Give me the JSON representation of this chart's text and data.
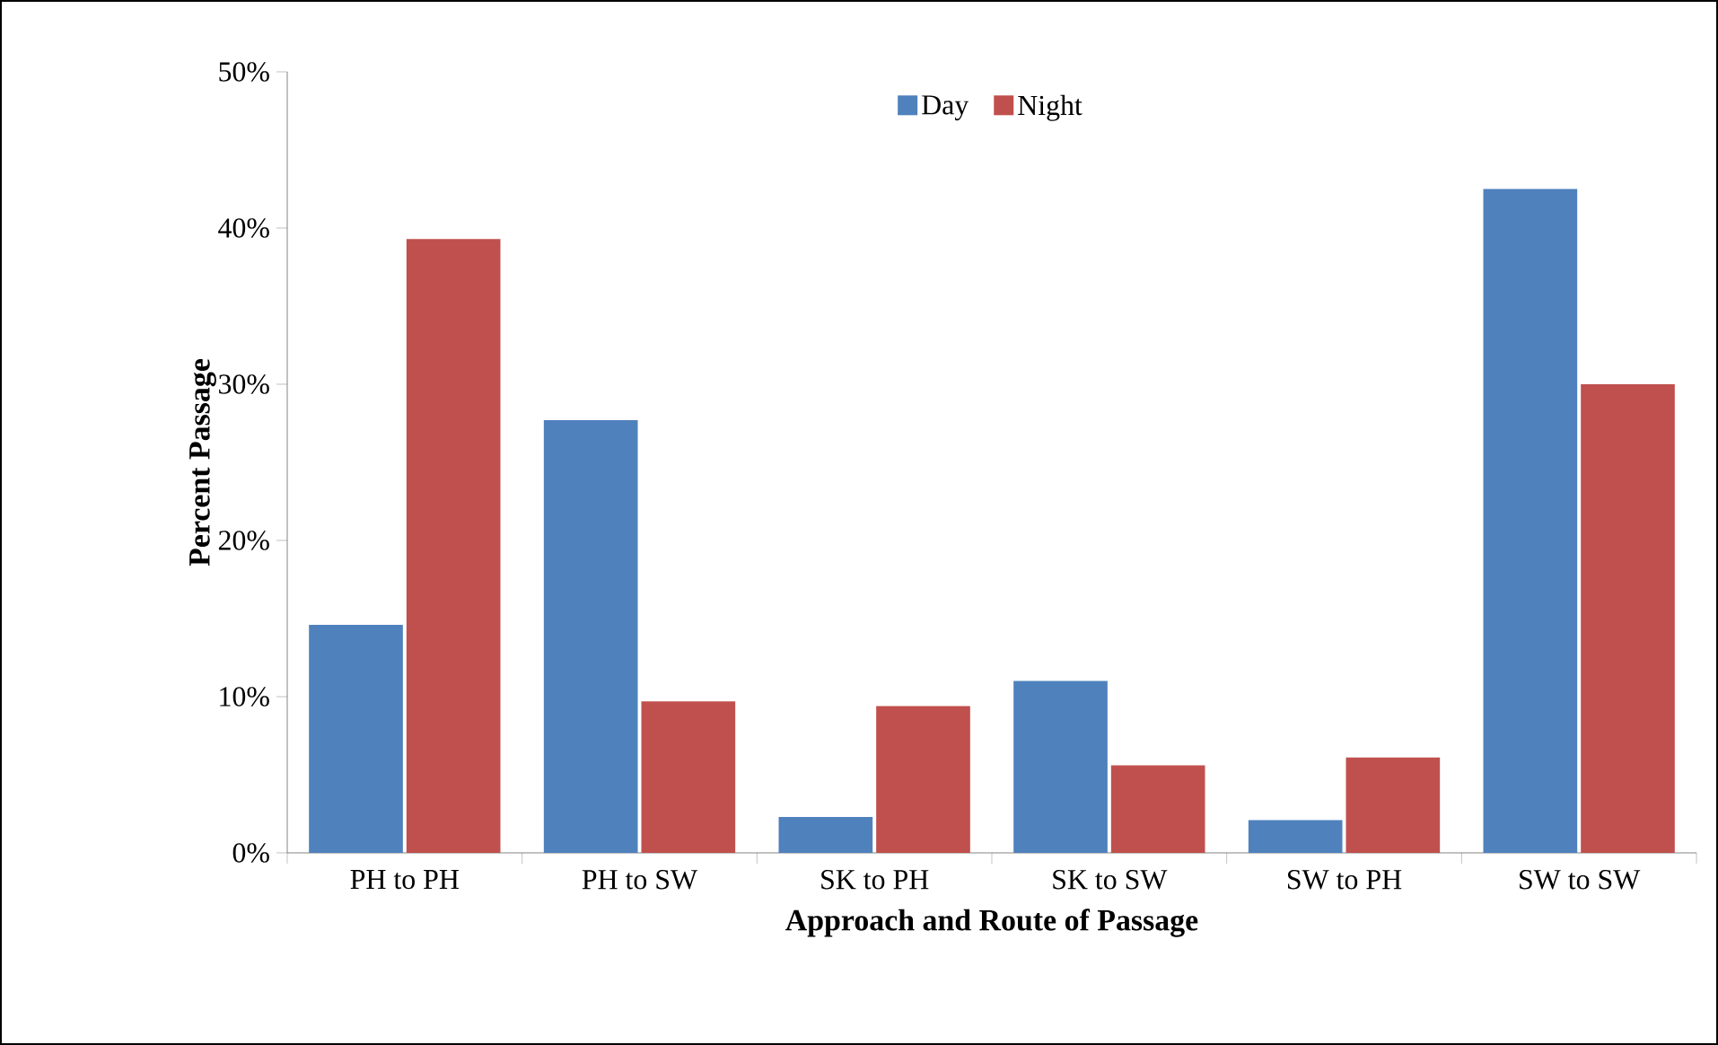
{
  "chart_data": {
    "type": "bar",
    "xlabel": "Approach and Route of Passage",
    "ylabel": "Percent Passage",
    "categories": [
      "PH to PH",
      "PH to SW",
      "SK to PH",
      "SK to SW",
      "SW to PH",
      "SW to SW"
    ],
    "series": [
      {
        "name": "Day",
        "color": "#4f81bd",
        "values": [
          14.6,
          27.7,
          2.3,
          11.0,
          2.1,
          42.5
        ]
      },
      {
        "name": "Night",
        "color": "#c0504d",
        "values": [
          39.3,
          9.7,
          9.4,
          5.6,
          6.1,
          30.0
        ]
      }
    ],
    "ylim": [
      0,
      50
    ],
    "yticks": [
      {
        "value": 0,
        "label": "0%"
      },
      {
        "value": 10,
        "label": "10%"
      },
      {
        "value": 20,
        "label": "20%"
      },
      {
        "value": 30,
        "label": "30%"
      },
      {
        "value": 40,
        "label": "40%"
      },
      {
        "value": 50,
        "label": "50%"
      }
    ],
    "legend": "top"
  }
}
